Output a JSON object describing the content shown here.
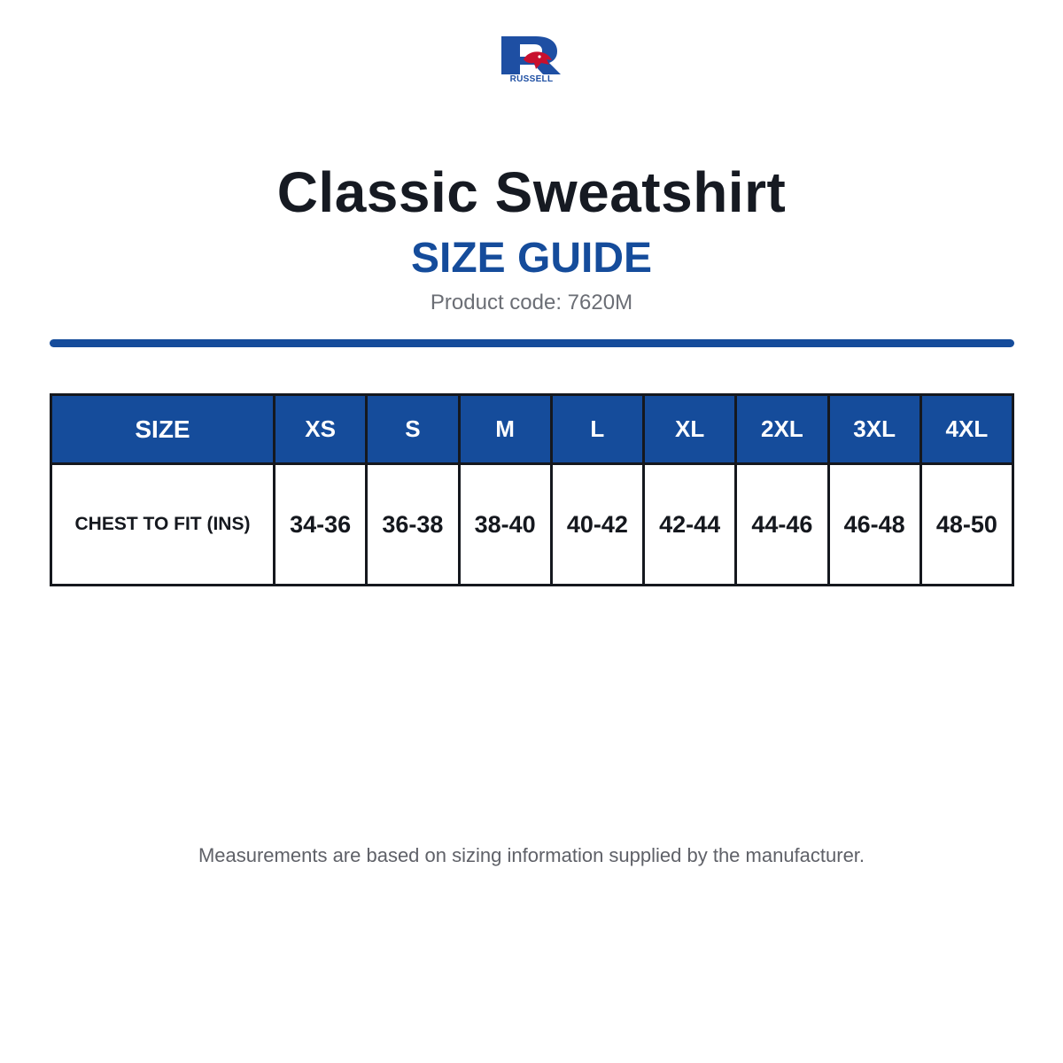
{
  "logo": {
    "brand_text": "RUSSELL",
    "colors": {
      "blue": "#1e4fa3",
      "red": "#c8102e"
    },
    "icon": "eagle-r-logo-icon"
  },
  "header": {
    "title": "Classic Sweatshirt",
    "subtitle": "SIZE GUIDE",
    "product_code": "Product code: 7620M"
  },
  "table": {
    "row_header": "SIZE",
    "sizes": [
      "XS",
      "S",
      "M",
      "L",
      "XL",
      "2XL",
      "3XL",
      "4XL"
    ],
    "rows": [
      {
        "label": "CHEST TO FIT (INS)",
        "values": [
          "34-36",
          "36-38",
          "38-40",
          "40-42",
          "42-44",
          "44-46",
          "46-48",
          "48-50"
        ]
      }
    ]
  },
  "footer": {
    "note": "Measurements are based on sizing information supplied by the manufacturer."
  },
  "colors": {
    "accent": "#154c9b",
    "text_dark": "#161a22",
    "text_muted": "#6b6e75"
  }
}
